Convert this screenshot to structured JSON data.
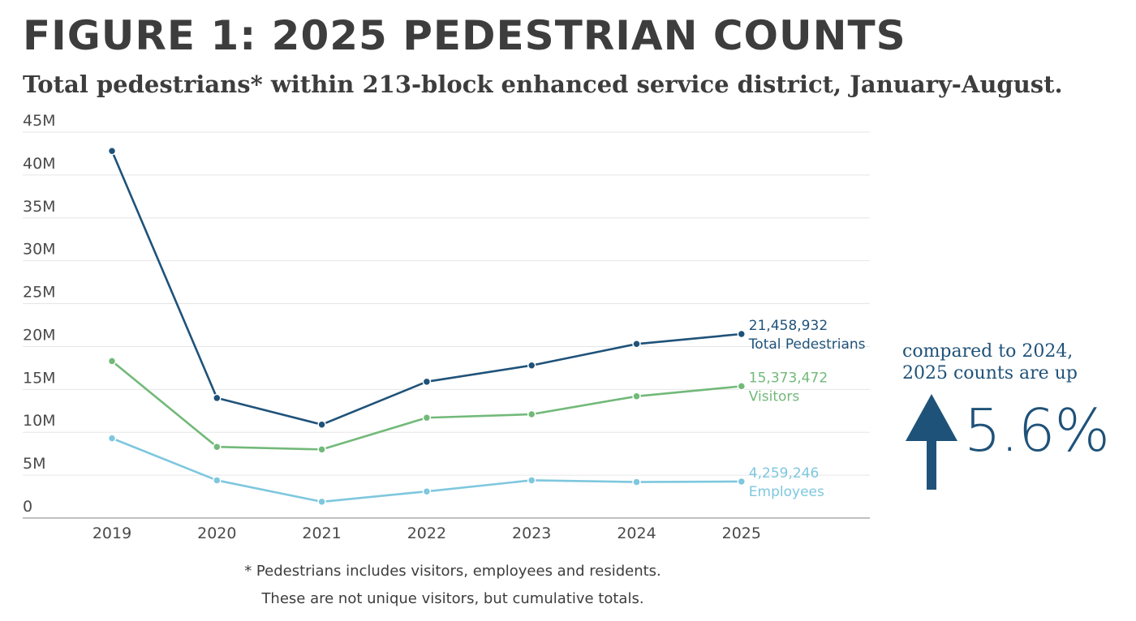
{
  "header": {
    "title": "FIGURE 1: 2025 PEDESTRIAN COUNTS",
    "subtitle": "Total pedestrians* within 213-block enhanced service district, January-August."
  },
  "callout": {
    "line1": "compared to 2024,",
    "line2": "2025 counts are up",
    "value": "5.6%",
    "icon": "up-arrow-icon",
    "color": "#1f5279"
  },
  "footnote": {
    "line1": "* Pedestrians includes visitors, employees and residents.",
    "line2": "These are not unique visitors, but cumulative totals."
  },
  "chart_data": {
    "type": "line",
    "x": [
      "2019",
      "2020",
      "2021",
      "2022",
      "2023",
      "2024",
      "2025"
    ],
    "y_ticks": [
      0,
      5000000,
      10000000,
      15000000,
      20000000,
      25000000,
      30000000,
      35000000,
      40000000,
      45000000
    ],
    "y_tick_labels": [
      "0",
      "5M",
      "10M",
      "15M",
      "20M",
      "25M",
      "30M",
      "35M",
      "40M",
      "45M"
    ],
    "ylim": [
      0,
      45000000
    ],
    "grid": true,
    "series": [
      {
        "name": "Total Pedestrians",
        "color": "#1f5279",
        "values": [
          42800000,
          14000000,
          10900000,
          15900000,
          17800000,
          20300000,
          21458932
        ],
        "end_label": "21,458,932"
      },
      {
        "name": "Visitors",
        "color": "#72b979",
        "values": [
          18300000,
          8300000,
          8000000,
          11700000,
          12100000,
          14200000,
          15373472
        ],
        "end_label": "15,373,472"
      },
      {
        "name": "Employees",
        "color": "#7ec7de",
        "values": [
          9300000,
          4400000,
          1900000,
          3100000,
          4400000,
          4200000,
          4259246
        ],
        "end_label": "4,259,246"
      }
    ]
  }
}
